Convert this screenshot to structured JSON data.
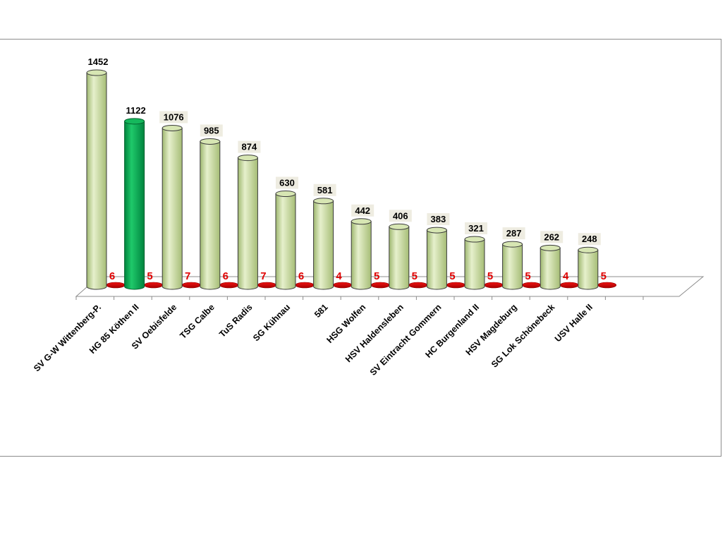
{
  "chart_data": {
    "type": "bar",
    "categories": [
      "SV G-W Wittenberg-P.",
      "HG 85 Köthen II",
      "SV Oebisfelde",
      "TSG Calbe",
      "TuS Radis",
      "SG Kühnau",
      "581",
      "HSG Wolfen",
      "HSV Haldensleben",
      "SV Eintracht Gommern",
      "HC Burgenland II",
      "HSV Magdeburg",
      "SG Lok Schönebeck",
      "USV Halle II"
    ],
    "series": [
      {
        "values": [
          1452,
          1122,
          1076,
          985,
          874,
          630,
          581,
          442,
          406,
          383,
          321,
          287,
          262,
          248
        ],
        "color": "#c4d79b"
      },
      {
        "values": [
          6,
          5,
          7,
          6,
          7,
          6,
          4,
          5,
          5,
          5,
          5,
          5,
          4,
          5
        ],
        "color": "#cc0000"
      }
    ],
    "value_labels": [
      "1452",
      "1122",
      "1076",
      "985",
      "874",
      "630",
      "581",
      "442",
      "406",
      "383",
      "321",
      "287",
      "262",
      "248"
    ],
    "count_labels": [
      "6",
      "5",
      "7",
      "6",
      "7",
      "6",
      "4",
      "5",
      "5",
      "5",
      "5",
      "5",
      "4",
      "5"
    ],
    "highlight_index": 1,
    "highlight_color": "#00a550",
    "label_box_color": "#eeece1",
    "ylim": [
      0,
      1452
    ],
    "grid": false,
    "legend": "none",
    "title": "",
    "xlabel": "",
    "ylabel": ""
  }
}
